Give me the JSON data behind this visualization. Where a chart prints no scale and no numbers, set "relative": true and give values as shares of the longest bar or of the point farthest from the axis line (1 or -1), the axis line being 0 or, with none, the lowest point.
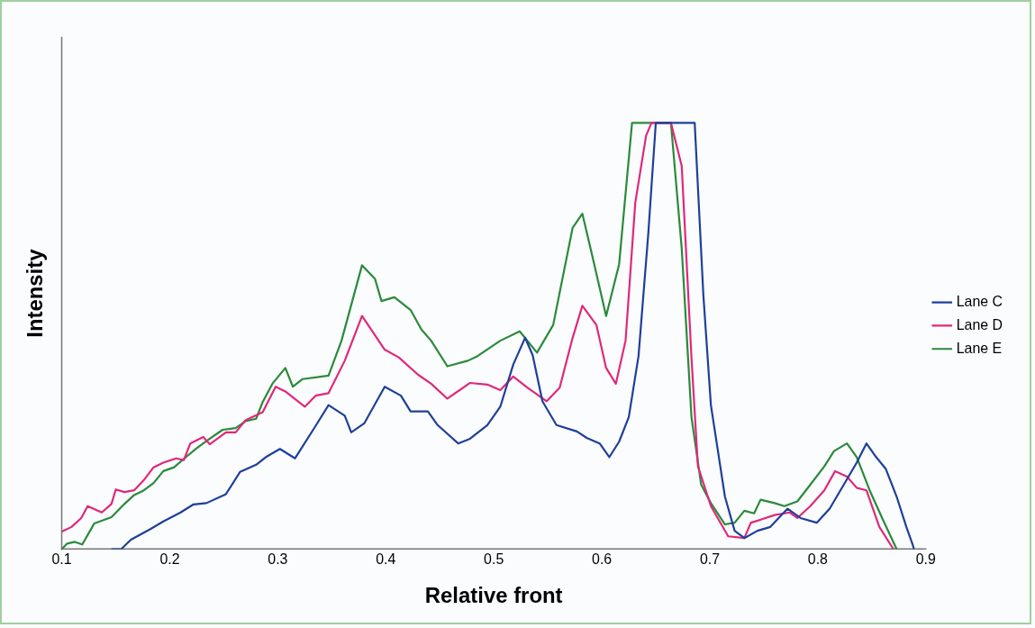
{
  "chart_data": {
    "type": "line",
    "relative": true,
    "xlabel": "Relative front",
    "ylabel": "Intensity",
    "xlim": [
      0.1,
      0.9
    ],
    "xticks": [
      0.1,
      0.2,
      0.3,
      0.4,
      0.5,
      0.6,
      0.7,
      0.8,
      0.9
    ],
    "legend": "right",
    "marker": "none",
    "grid": false,
    "series": [
      {
        "name": "Lane C",
        "color": "#1f3f99",
        "x": [
          0.146,
          0.155,
          0.164,
          0.182,
          0.194,
          0.21,
          0.222,
          0.234,
          0.252,
          0.265,
          0.28,
          0.289,
          0.302,
          0.316,
          0.335,
          0.347,
          0.362,
          0.368,
          0.38,
          0.399,
          0.414,
          0.423,
          0.439,
          0.448,
          0.467,
          0.478,
          0.494,
          0.506,
          0.518,
          0.529,
          0.536,
          0.545,
          0.558,
          0.577,
          0.586,
          0.598,
          0.607,
          0.616,
          0.625,
          0.634,
          0.643,
          0.65,
          0.686,
          0.694,
          0.701,
          0.714,
          0.723,
          0.732,
          0.744,
          0.756,
          0.772,
          0.784,
          0.799,
          0.811,
          0.824,
          0.836,
          0.845,
          0.854,
          0.863,
          0.873,
          0.882,
          0.888,
          0.889
        ],
        "values": [
          0,
          0,
          0.022,
          0.047,
          0.065,
          0.086,
          0.105,
          0.108,
          0.129,
          0.181,
          0.198,
          0.216,
          0.235,
          0.213,
          0.289,
          0.338,
          0.313,
          0.274,
          0.295,
          0.381,
          0.36,
          0.323,
          0.323,
          0.291,
          0.248,
          0.259,
          0.291,
          0.334,
          0.433,
          0.496,
          0.455,
          0.347,
          0.291,
          0.276,
          0.261,
          0.248,
          0.216,
          0.252,
          0.31,
          0.453,
          0.739,
          1,
          1,
          0.597,
          0.338,
          0.123,
          0.043,
          0.026,
          0.043,
          0.052,
          0.095,
          0.073,
          0.062,
          0.095,
          0.151,
          0.203,
          0.248,
          0.216,
          0.188,
          0.123,
          0.052,
          0.009,
          0
        ]
      },
      {
        "name": "Lane D",
        "color": "#e0287a",
        "x": [
          0.1,
          0.109,
          0.118,
          0.124,
          0.137,
          0.146,
          0.15,
          0.158,
          0.167,
          0.176,
          0.185,
          0.194,
          0.206,
          0.213,
          0.219,
          0.231,
          0.237,
          0.252,
          0.261,
          0.27,
          0.286,
          0.298,
          0.307,
          0.325,
          0.335,
          0.347,
          0.362,
          0.378,
          0.399,
          0.412,
          0.43,
          0.442,
          0.457,
          0.478,
          0.494,
          0.506,
          0.518,
          0.531,
          0.549,
          0.561,
          0.573,
          0.582,
          0.595,
          0.604,
          0.613,
          0.622,
          0.631,
          0.641,
          0.646,
          0.664,
          0.674,
          0.683,
          0.689,
          0.701,
          0.717,
          0.732,
          0.738,
          0.747,
          0.76,
          0.774,
          0.781,
          0.793,
          0.806,
          0.816,
          0.827,
          0.836,
          0.845,
          0.857,
          0.87
        ],
        "values": [
          0.041,
          0.052,
          0.073,
          0.101,
          0.086,
          0.106,
          0.14,
          0.134,
          0.138,
          0.162,
          0.192,
          0.203,
          0.213,
          0.209,
          0.248,
          0.263,
          0.246,
          0.274,
          0.274,
          0.302,
          0.321,
          0.381,
          0.37,
          0.334,
          0.36,
          0.366,
          0.442,
          0.547,
          0.468,
          0.45,
          0.409,
          0.388,
          0.353,
          0.39,
          0.386,
          0.373,
          0.405,
          0.379,
          0.347,
          0.379,
          0.496,
          0.571,
          0.526,
          0.425,
          0.388,
          0.489,
          0.813,
          0.97,
          1,
          1,
          0.899,
          0.45,
          0.194,
          0.101,
          0.03,
          0.026,
          0.062,
          0.069,
          0.08,
          0.086,
          0.073,
          0.101,
          0.138,
          0.183,
          0.17,
          0.144,
          0.138,
          0.052,
          0
        ]
      },
      {
        "name": "Lane E",
        "color": "#2a8a3a",
        "x": [
          0.1,
          0.105,
          0.112,
          0.119,
          0.13,
          0.146,
          0.158,
          0.167,
          0.176,
          0.185,
          0.194,
          0.204,
          0.215,
          0.225,
          0.237,
          0.249,
          0.261,
          0.27,
          0.28,
          0.286,
          0.295,
          0.307,
          0.314,
          0.323,
          0.347,
          0.359,
          0.378,
          0.39,
          0.396,
          0.408,
          0.423,
          0.433,
          0.442,
          0.457,
          0.476,
          0.485,
          0.506,
          0.524,
          0.54,
          0.555,
          0.573,
          0.582,
          0.591,
          0.604,
          0.616,
          0.628,
          0.664,
          0.674,
          0.683,
          0.692,
          0.701,
          0.714,
          0.723,
          0.732,
          0.741,
          0.747,
          0.76,
          0.769,
          0.781,
          0.793,
          0.806,
          0.815,
          0.827,
          0.836,
          0.848,
          0.861,
          0.873
        ],
        "values": [
          0,
          0.013,
          0.017,
          0.011,
          0.06,
          0.075,
          0.106,
          0.127,
          0.138,
          0.155,
          0.183,
          0.192,
          0.216,
          0.237,
          0.259,
          0.28,
          0.284,
          0.3,
          0.306,
          0.345,
          0.388,
          0.425,
          0.381,
          0.399,
          0.407,
          0.489,
          0.666,
          0.634,
          0.582,
          0.591,
          0.561,
          0.515,
          0.489,
          0.429,
          0.442,
          0.453,
          0.489,
          0.511,
          0.461,
          0.526,
          0.754,
          0.787,
          0.69,
          0.547,
          0.668,
          1,
          1,
          0.705,
          0.31,
          0.151,
          0.108,
          0.058,
          0.062,
          0.09,
          0.084,
          0.116,
          0.108,
          0.101,
          0.112,
          0.151,
          0.194,
          0.23,
          0.248,
          0.216,
          0.138,
          0.065,
          0
        ]
      }
    ]
  }
}
